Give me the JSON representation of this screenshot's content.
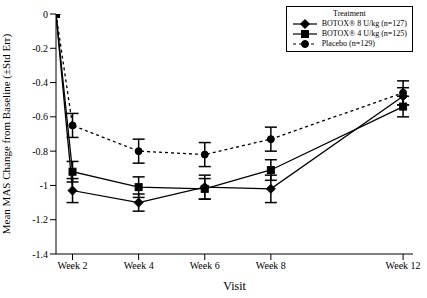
{
  "chart_data": {
    "type": "line",
    "x_label": "Visit",
    "y_label": "Mean MAS Change from Baseline (±Std Err)",
    "legend_title": "Treatment",
    "legend": "top-right",
    "x": [
      1.5,
      2,
      4,
      6,
      8,
      12
    ],
    "xlim": [
      1.5,
      12.3
    ],
    "xticks": [
      {
        "value": 2,
        "label": "Week 2"
      },
      {
        "value": 4,
        "label": "Week 4"
      },
      {
        "value": 6,
        "label": "Week 6"
      },
      {
        "value": 8,
        "label": "Week 8"
      },
      {
        "value": 12,
        "label": "Week 12"
      }
    ],
    "ylim": [
      -1.4,
      0
    ],
    "yticks": [
      0,
      -0.2,
      -0.4,
      -0.6,
      -0.8,
      -1,
      -1.2,
      -1.4
    ],
    "series": [
      {
        "name": "BOTOX® 8 U/kg (n=127)",
        "color": "#000000",
        "marker": "diamond",
        "line_style": "solid",
        "values": [
          0,
          -1.03,
          -1.1,
          -1.01,
          -1.02,
          -0.48
        ],
        "errors": [
          0,
          0.07,
          0.05,
          0.07,
          0.08,
          0.05
        ]
      },
      {
        "name": "BOTOX® 4 U/kg (n=125)",
        "color": "#000000",
        "marker": "square",
        "line_style": "solid",
        "values": [
          0,
          -0.92,
          -1.01,
          -1.02,
          -0.91,
          -0.54
        ],
        "errors": [
          0,
          0.06,
          0.06,
          0.06,
          0.06,
          0.06
        ]
      },
      {
        "name": "Placebo (n=129)",
        "color": "#000000",
        "marker": "circle",
        "line_style": "dotted",
        "values": [
          0,
          -0.65,
          -0.8,
          -0.82,
          -0.73,
          -0.46
        ],
        "errors": [
          0,
          0.07,
          0.07,
          0.07,
          0.07,
          0.07
        ]
      }
    ]
  }
}
